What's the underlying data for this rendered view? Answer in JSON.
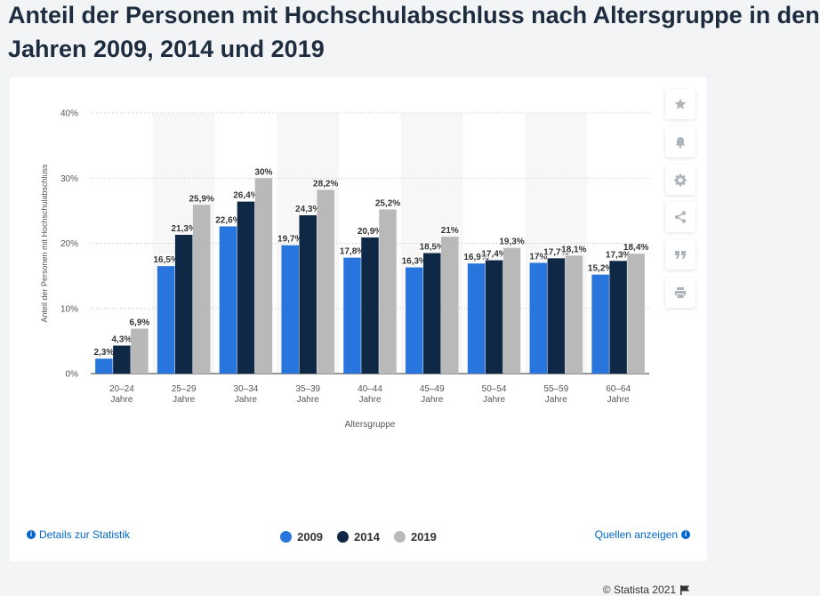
{
  "title": "Anteil der Personen mit Hochschulabschluss nach Altersgruppe in den Jahren 2009, 2014 und 2019",
  "title_line1": "Anteil der Personen mit Hochschulabschluss nach Altersgruppe in den",
  "title_line2": "Jahren 2009, 2014 und 2019",
  "colors": {
    "s2009": "#2876dd",
    "s2014": "#0f2846",
    "s2019": "#b9b9b9",
    "link": "#0066cc"
  },
  "sidebar_icons": [
    "star-icon",
    "bell-icon",
    "gear-icon",
    "share-icon",
    "quote-icon",
    "print-icon"
  ],
  "footer": {
    "details": "Details zur Statistik",
    "sources": "Quellen anzeigen",
    "copyright": "© Statista 2021"
  },
  "chart_data": {
    "type": "bar",
    "title": "",
    "xlabel": "Altersgruppe",
    "ylabel": "Anteil der Personen mit Hochschulabschluss",
    "ylim": [
      0,
      40
    ],
    "yticks": [
      "0%",
      "10%",
      "20%",
      "30%",
      "40%"
    ],
    "categories": [
      "20–24 Jahre",
      "25–29 Jahre",
      "30–34 Jahre",
      "35–39 Jahre",
      "40–44 Jahre",
      "45–49 Jahre",
      "50–54 Jahre",
      "55–59 Jahre",
      "60–64 Jahre"
    ],
    "category_lines": [
      [
        "20–24",
        "Jahre"
      ],
      [
        "25–29",
        "Jahre"
      ],
      [
        "30–34",
        "Jahre"
      ],
      [
        "35–39",
        "Jahre"
      ],
      [
        "40–44",
        "Jahre"
      ],
      [
        "45–49",
        "Jahre"
      ],
      [
        "50–54",
        "Jahre"
      ],
      [
        "55–59",
        "Jahre"
      ],
      [
        "60–64",
        "Jahre"
      ]
    ],
    "series": [
      {
        "name": "2009",
        "color": "#2876dd",
        "values": [
          2.3,
          16.5,
          22.6,
          19.7,
          17.8,
          16.3,
          16.9,
          17.0,
          15.2
        ],
        "labels": [
          "2,3%",
          "16,5%",
          "22,6%",
          "19,7%",
          "17,8%",
          "16,3%",
          "16,9%",
          "17%",
          "15,2%"
        ]
      },
      {
        "name": "2014",
        "color": "#0f2846",
        "values": [
          4.3,
          21.3,
          26.4,
          24.3,
          20.9,
          18.5,
          17.4,
          17.7,
          17.3
        ],
        "labels": [
          "4,3%",
          "21,3%",
          "26,4%",
          "24,3%",
          "20,9%",
          "18,5%",
          "17,4%",
          "17,7%",
          "17,3%"
        ]
      },
      {
        "name": "2019",
        "color": "#b9b9b9",
        "values": [
          6.9,
          25.9,
          30.0,
          28.2,
          25.2,
          21.0,
          19.3,
          18.1,
          18.4
        ],
        "labels": [
          "6,9%",
          "25,9%",
          "30%",
          "28,2%",
          "25,2%",
          "21%",
          "19,3%",
          "18,1%",
          "18,4%"
        ]
      }
    ],
    "grid": true,
    "legend_position": "bottom"
  }
}
